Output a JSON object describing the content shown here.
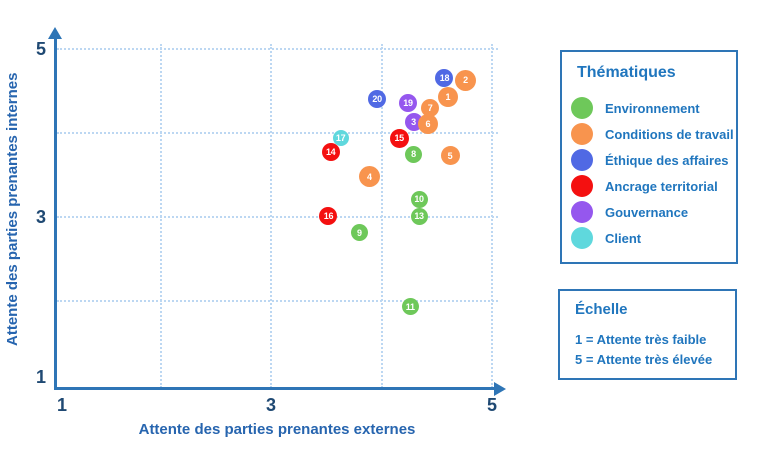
{
  "colors": {
    "axis": "#2E75B6",
    "grid": "#BCD7F2",
    "tick_text": "#1F4973",
    "axis_title_text": "#2765AF",
    "panel_border": "#2E75B6",
    "legend_text": "#2076BE",
    "bubble_number_text": "#FFFFFF"
  },
  "chart_data": {
    "type": "scatter",
    "title": "",
    "xlabel": "Attente des parties prenantes externes",
    "ylabel": "Attente des parties prenantes internes",
    "xlim": [
      1,
      5
    ],
    "ylim": [
      1,
      5
    ],
    "xticks": [
      1,
      3,
      5
    ],
    "yticks": [
      1,
      3,
      5
    ],
    "gridline_values": [
      2,
      3,
      4,
      5
    ],
    "grid": "dotted",
    "legend_position": "right",
    "themes": {
      "environnement": {
        "label": "Environnement",
        "color": "#6EC85A"
      },
      "conditions": {
        "label": "Conditions de travail",
        "color": "#F8944E"
      },
      "ethique": {
        "label": "Éthique des affaires",
        "color": "#5069E4"
      },
      "ancrage": {
        "label": "Ancrage territorial",
        "color": "#F41010"
      },
      "gouvernance": {
        "label": "Gouvernance",
        "color": "#9557EE"
      },
      "client": {
        "label": "Client",
        "color": "#5FD8DD"
      }
    },
    "points": [
      {
        "label": "1",
        "theme": "conditions",
        "x": 4.6,
        "y": 4.43,
        "size": 20,
        "z": 2
      },
      {
        "label": "2",
        "theme": "conditions",
        "x": 4.76,
        "y": 4.63,
        "size": 21,
        "z": 1
      },
      {
        "label": "3",
        "theme": "gouvernance",
        "x": 4.29,
        "y": 4.13,
        "size": 18,
        "z": 7
      },
      {
        "label": "4",
        "theme": "conditions",
        "x": 3.89,
        "y": 3.48,
        "size": 21,
        "z": 14
      },
      {
        "label": "5",
        "theme": "conditions",
        "x": 4.62,
        "y": 3.73,
        "size": 19,
        "z": 13
      },
      {
        "label": "6",
        "theme": "conditions",
        "x": 4.42,
        "y": 4.11,
        "size": 20,
        "z": 8
      },
      {
        "label": "7",
        "theme": "conditions",
        "x": 4.44,
        "y": 4.3,
        "size": 18,
        "z": 3
      },
      {
        "label": "8",
        "theme": "environnement",
        "x": 4.29,
        "y": 3.75,
        "size": 17,
        "z": 12
      },
      {
        "label": "9",
        "theme": "environnement",
        "x": 3.8,
        "y": 2.81,
        "size": 17,
        "z": 18
      },
      {
        "label": "10",
        "theme": "environnement",
        "x": 4.34,
        "y": 3.21,
        "size": 17,
        "z": 17
      },
      {
        "label": "11",
        "theme": "environnement",
        "x": 4.26,
        "y": 1.93,
        "size": 17,
        "z": 19
      },
      {
        "label": "13",
        "theme": "environnement",
        "x": 4.34,
        "y": 3.01,
        "size": 17,
        "z": 16
      },
      {
        "label": "14",
        "theme": "ancrage",
        "x": 3.54,
        "y": 3.77,
        "size": 18,
        "z": 10
      },
      {
        "label": "15",
        "theme": "ancrage",
        "x": 4.16,
        "y": 3.94,
        "size": 19,
        "z": 9
      },
      {
        "label": "16",
        "theme": "ancrage",
        "x": 3.52,
        "y": 3.01,
        "size": 18,
        "z": 15
      },
      {
        "label": "17",
        "theme": "client",
        "x": 3.63,
        "y": 3.94,
        "size": 16,
        "z": 11
      },
      {
        "label": "18",
        "theme": "ethique",
        "x": 4.57,
        "y": 4.65,
        "size": 18,
        "z": 4
      },
      {
        "label": "19",
        "theme": "gouvernance",
        "x": 4.24,
        "y": 4.36,
        "size": 18,
        "z": 5
      },
      {
        "label": "20",
        "theme": "ethique",
        "x": 3.96,
        "y": 4.4,
        "size": 18,
        "z": 6
      }
    ]
  },
  "legend": {
    "title": "Thématiques",
    "order": [
      "environnement",
      "conditions",
      "ethique",
      "ancrage",
      "gouvernance",
      "client"
    ]
  },
  "scale": {
    "title": "Échelle",
    "lines": [
      "1 = Attente très faible",
      "5 = Attente très élevée"
    ]
  }
}
